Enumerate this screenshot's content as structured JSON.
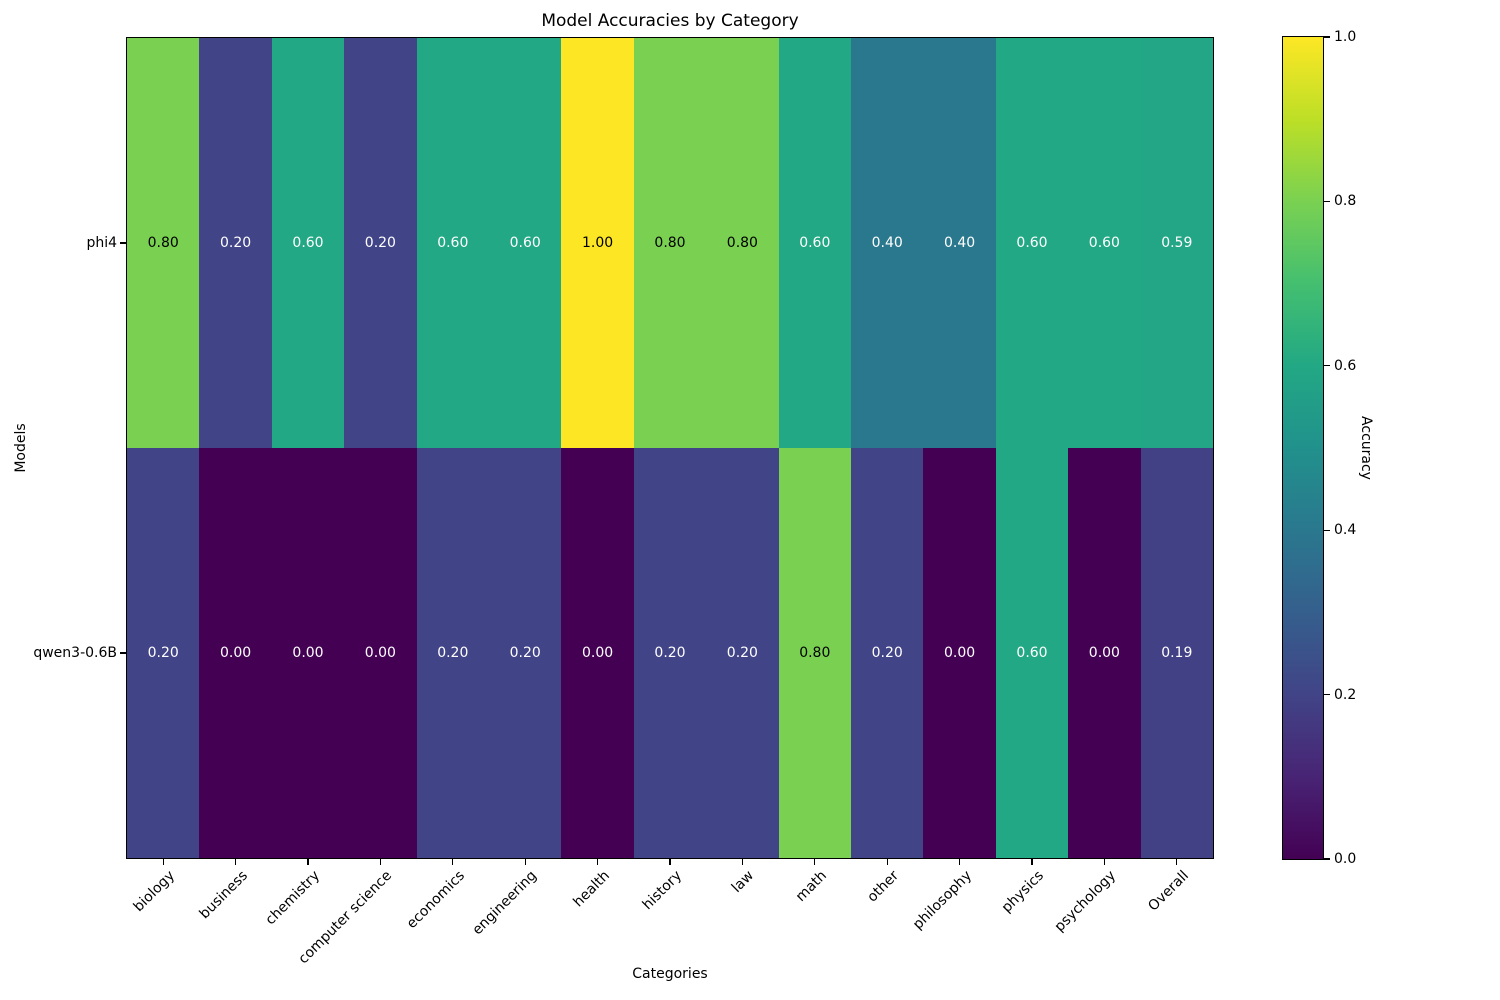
{
  "title": "Model Accuracies by Category",
  "xlabel": "Categories",
  "ylabel": "Models",
  "colorbar": {
    "label": "Accuracy"
  },
  "chart_data": {
    "type": "heatmap",
    "title": "Model Accuracies by Category",
    "xlabel": "Categories",
    "ylabel": "Models",
    "colorbar_label": "Accuracy",
    "categories": [
      "biology",
      "business",
      "chemistry",
      "computer science",
      "economics",
      "engineering",
      "health",
      "history",
      "law",
      "math",
      "other",
      "philosophy",
      "physics",
      "psychology",
      "Overall"
    ],
    "rows": [
      "phi4",
      "qwen3-0.6B"
    ],
    "values": [
      [
        0.8,
        0.2,
        0.6,
        0.2,
        0.6,
        0.6,
        1.0,
        0.8,
        0.8,
        0.6,
        0.4,
        0.4,
        0.6,
        0.6,
        0.59
      ],
      [
        0.2,
        0.0,
        0.0,
        0.0,
        0.2,
        0.2,
        0.0,
        0.2,
        0.2,
        0.8,
        0.2,
        0.0,
        0.6,
        0.0,
        0.19
      ]
    ],
    "vmin": 0.0,
    "vmax": 1.0,
    "colorbar_ticks": [
      1.0,
      0.8,
      0.6,
      0.4,
      0.2,
      0.0
    ],
    "annotation_decimals": 2,
    "annotation_threshold": 0.7,
    "colormap": "viridis",
    "legend_position": "right-colorbar",
    "grid": false
  },
  "colors": {
    "viridis_stops": [
      "#440154",
      "#482475",
      "#414487",
      "#355f8d",
      "#2a788e",
      "#21918c",
      "#22a884",
      "#44bf70",
      "#7ad151",
      "#bddf26",
      "#fde725"
    ],
    "background": "#ffffff",
    "annotation_dark": "#000000",
    "annotation_light": "#ffffff",
    "axis_color": "#000000"
  }
}
